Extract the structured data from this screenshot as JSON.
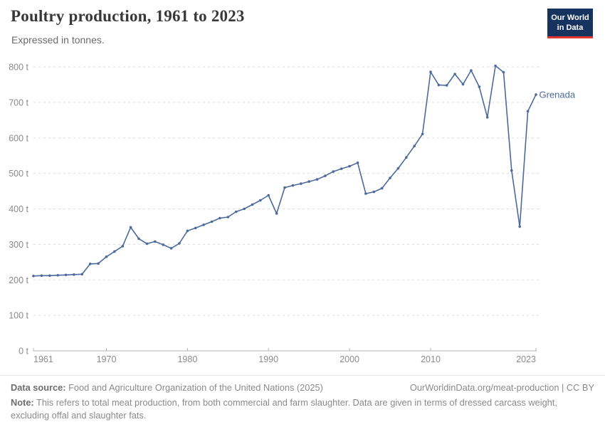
{
  "header": {
    "title": "Poultry production, 1961 to 2023",
    "subtitle": "Expressed in tonnes.",
    "logo": {
      "line1": "Our World",
      "line2": "in Data"
    }
  },
  "chart_data": {
    "type": "line",
    "title": "Poultry production, 1961 to 2023",
    "unit": "tonnes",
    "grid": true,
    "legend_position": "end-of-line",
    "ylim": [
      0,
      800
    ],
    "yticks": [
      0,
      100,
      200,
      300,
      400,
      500,
      600,
      700,
      800
    ],
    "ytick_format": "{v} t",
    "xticks": [
      1961,
      1970,
      1980,
      1990,
      2000,
      2010,
      2023
    ],
    "x": [
      1961,
      1962,
      1963,
      1964,
      1965,
      1966,
      1967,
      1968,
      1969,
      1970,
      1971,
      1972,
      1973,
      1974,
      1975,
      1976,
      1977,
      1978,
      1979,
      1980,
      1981,
      1982,
      1983,
      1984,
      1985,
      1986,
      1987,
      1988,
      1989,
      1990,
      1991,
      1992,
      1993,
      1994,
      1995,
      1996,
      1997,
      1998,
      1999,
      2000,
      2001,
      2002,
      2003,
      2004,
      2005,
      2006,
      2007,
      2008,
      2009,
      2010,
      2011,
      2012,
      2013,
      2014,
      2015,
      2016,
      2017,
      2018,
      2019,
      2020,
      2021,
      2022,
      2023
    ],
    "series": [
      {
        "name": "Grenada",
        "color": "#4C6A9C",
        "values": [
          211,
          212,
          212,
          213,
          214,
          215,
          216,
          245,
          246,
          265,
          280,
          295,
          348,
          316,
          302,
          308,
          299,
          289,
          303,
          338,
          346,
          355,
          364,
          374,
          377,
          392,
          400,
          412,
          424,
          438,
          387,
          460,
          466,
          471,
          477,
          483,
          493,
          505,
          513,
          520,
          530,
          443,
          448,
          458,
          487,
          514,
          545,
          577,
          611,
          786,
          749,
          748,
          780,
          751,
          790,
          744,
          658,
          803,
          785,
          508,
          350,
          675,
          722
        ]
      }
    ]
  },
  "footer": {
    "datasource_label": "Data source:",
    "datasource_text": "Food and Agriculture Organization of the United Nations (2025)",
    "link": "OurWorldinData.org/meat-production | CC BY",
    "note_label": "Note:",
    "note_text": "This refers to total meat production, from both commercial and farm slaughter. Data are given in terms of dressed carcass weight, excluding offal and slaughter fats."
  },
  "colors": {
    "line": "#4C6A9C",
    "title": "#383838",
    "grid": "#dcdcdc",
    "axis": "#b3b3b3",
    "axis_text": "#8b8b8b",
    "logo_bg": "#163360",
    "logo_accent": "#e5332d"
  }
}
